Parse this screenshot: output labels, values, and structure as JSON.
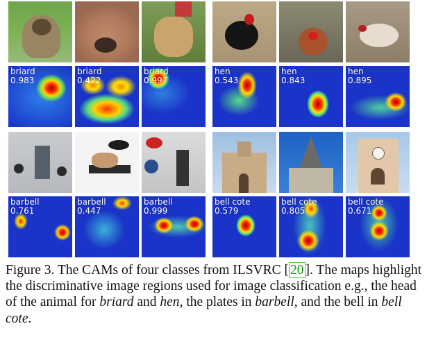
{
  "groups": [
    {
      "class_name": "briard",
      "tiles": [
        {
          "label": "briard",
          "score": "0.983"
        },
        {
          "label": "briard",
          "score": "0.422"
        },
        {
          "label": "briard",
          "score": "0.997"
        }
      ]
    },
    {
      "class_name": "hen",
      "tiles": [
        {
          "label": "hen",
          "score": "0.543"
        },
        {
          "label": "hen",
          "score": "0.843"
        },
        {
          "label": "hen",
          "score": "0.895"
        }
      ]
    },
    {
      "class_name": "barbell",
      "tiles": [
        {
          "label": "barbell",
          "score": "0.761"
        },
        {
          "label": "barbell",
          "score": "0.447"
        },
        {
          "label": "barbell",
          "score": "0.999"
        }
      ]
    },
    {
      "class_name": "bell cote",
      "tiles": [
        {
          "label": "bell cote",
          "score": "0.579"
        },
        {
          "label": "bell cote",
          "score": "0.805"
        },
        {
          "label": "bell cote",
          "score": "0.671"
        }
      ]
    }
  ],
  "caption": {
    "prefix": "Figure 3. The CAMs of four classes from ILSVRC [",
    "citation": "20",
    "part1": "]. The maps highlight the discriminative image regions used for image classification e.g., the head of the animal for ",
    "em1": "briard",
    "and": " and ",
    "em2": "hen",
    "part2": ", the plates in ",
    "em3": "barbell",
    "part3": ", and the bell in ",
    "em4": "bell cote",
    "end": "."
  },
  "colors": {
    "cam_base": "#1a33c8",
    "citation_green": "#1a9a1a"
  }
}
